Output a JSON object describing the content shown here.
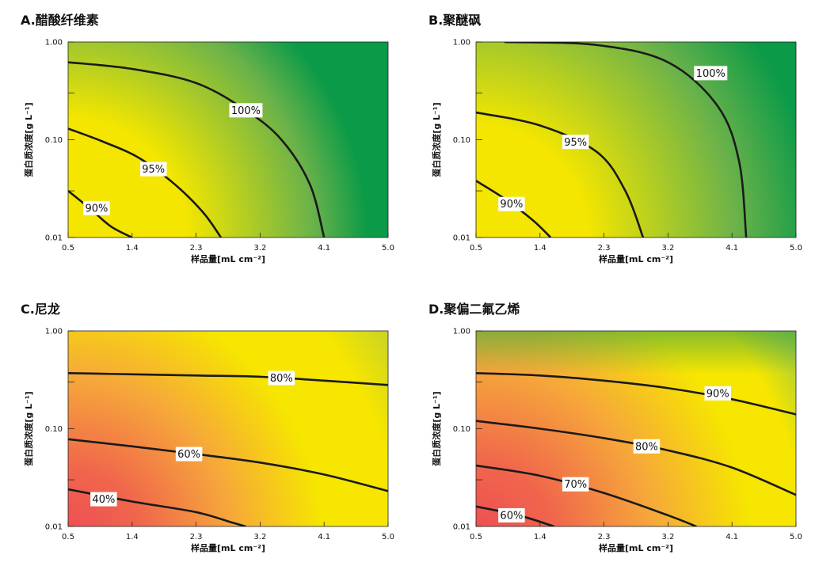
{
  "chart_data": [
    {
      "type": "contour",
      "title": "A.醋酸纤维素",
      "xlabel": "样品量[mL cm⁻²]",
      "ylabel": "蛋白质浓度[g L⁻¹]",
      "x_ticks": [
        "0.5",
        "1.4",
        "2.3",
        "3.2",
        "4.1",
        "5.0"
      ],
      "y_ticks": [
        "1.00",
        "0.10",
        "0.01"
      ],
      "xlim": [
        0.5,
        5.0
      ],
      "ylim": [
        0.01,
        1.0
      ],
      "y_scale": "log",
      "colors": {
        "low": "#f4e600",
        "high": "#0a9a48"
      },
      "contours": [
        {
          "label": "90%",
          "points": [
            [
              0.5,
              0.03
            ],
            [
              0.8,
              0.02
            ],
            [
              1.1,
              0.013
            ],
            [
              1.4,
              0.01
            ]
          ],
          "label_at": [
            0.9,
            0.02
          ]
        },
        {
          "label": "95%",
          "points": [
            [
              0.5,
              0.13
            ],
            [
              1.0,
              0.095
            ],
            [
              1.5,
              0.065
            ],
            [
              2.0,
              0.035
            ],
            [
              2.4,
              0.018
            ],
            [
              2.65,
              0.01
            ]
          ],
          "label_at": [
            1.7,
            0.05
          ]
        },
        {
          "label": "100%",
          "points": [
            [
              0.5,
              0.62
            ],
            [
              1.4,
              0.53
            ],
            [
              2.3,
              0.38
            ],
            [
              3.0,
              0.2
            ],
            [
              3.5,
              0.1
            ],
            [
              3.9,
              0.035
            ],
            [
              4.1,
              0.01
            ]
          ],
          "label_at": [
            3.0,
            0.2
          ]
        }
      ]
    },
    {
      "type": "contour",
      "title": "B.聚醚砜",
      "xlabel": "样品量[mL cm⁻²]",
      "ylabel": "蛋白质浓度[g L⁻¹]",
      "x_ticks": [
        "0.5",
        "1.4",
        "2.3",
        "3.2",
        "4.1",
        "5.0"
      ],
      "y_ticks": [
        "1.00",
        "0.10",
        "0.01"
      ],
      "xlim": [
        0.5,
        5.0
      ],
      "ylim": [
        0.01,
        1.0
      ],
      "y_scale": "log",
      "colors": {
        "low": "#f4e600",
        "high": "#0a9a48"
      },
      "contours": [
        {
          "label": "90%",
          "points": [
            [
              0.5,
              0.038
            ],
            [
              0.9,
              0.025
            ],
            [
              1.3,
              0.015
            ],
            [
              1.55,
              0.01
            ]
          ],
          "label_at": [
            1.0,
            0.022
          ]
        },
        {
          "label": "95%",
          "points": [
            [
              0.5,
              0.19
            ],
            [
              1.4,
              0.14
            ],
            [
              2.2,
              0.075
            ],
            [
              2.6,
              0.03
            ],
            [
              2.85,
              0.01
            ]
          ],
          "label_at": [
            1.9,
            0.095
          ]
        },
        {
          "label": "100%",
          "points": [
            [
              0.9,
              1.0
            ],
            [
              2.2,
              0.93
            ],
            [
              3.2,
              0.62
            ],
            [
              3.9,
              0.22
            ],
            [
              4.2,
              0.06
            ],
            [
              4.3,
              0.01
            ]
          ],
          "label_at": [
            3.8,
            0.48
          ]
        }
      ]
    },
    {
      "type": "contour",
      "title": "C.尼龙",
      "xlabel": "样品量[mL cm⁻²]",
      "ylabel": "蛋白质浓度[g L⁻¹]",
      "x_ticks": [
        "0.5",
        "1.4",
        "2.3",
        "3.2",
        "4.1",
        "5.0"
      ],
      "y_ticks": [
        "1.00",
        "0.10",
        "0.01"
      ],
      "xlim": [
        0.5,
        5.0
      ],
      "ylim": [
        0.01,
        1.0
      ],
      "y_scale": "log",
      "colors": {
        "low": "#ee4b55",
        "mid": "#f6e600",
        "high": "#2e9c4c"
      },
      "contours": [
        {
          "label": "40%",
          "points": [
            [
              0.5,
              0.024
            ],
            [
              1.4,
              0.018
            ],
            [
              2.3,
              0.014
            ],
            [
              2.8,
              0.011
            ],
            [
              3.0,
              0.01
            ]
          ],
          "label_at": [
            1.0,
            0.019
          ]
        },
        {
          "label": "60%",
          "points": [
            [
              0.5,
              0.078
            ],
            [
              1.4,
              0.066
            ],
            [
              2.3,
              0.055
            ],
            [
              3.2,
              0.045
            ],
            [
              4.1,
              0.034
            ],
            [
              5.0,
              0.023
            ]
          ],
          "label_at": [
            2.2,
            0.055
          ]
        },
        {
          "label": "80%",
          "points": [
            [
              0.5,
              0.37
            ],
            [
              1.4,
              0.36
            ],
            [
              2.3,
              0.35
            ],
            [
              3.2,
              0.34
            ],
            [
              4.1,
              0.31
            ],
            [
              5.0,
              0.28
            ]
          ],
          "label_at": [
            3.5,
            0.33
          ]
        }
      ]
    },
    {
      "type": "contour",
      "title": "D.聚偏二氟乙烯",
      "xlabel": "样品量[mL cm⁻²]",
      "ylabel": "蛋白质浓度[g L⁻¹]",
      "x_ticks": [
        "0.5",
        "1.4",
        "2.3",
        "3.2",
        "4.1",
        "5.0"
      ],
      "y_ticks": [
        "1.00",
        "0.10",
        "0.01"
      ],
      "xlim": [
        0.5,
        5.0
      ],
      "ylim": [
        0.01,
        1.0
      ],
      "y_scale": "log",
      "colors": {
        "low": "#ee4b55",
        "mid": "#f6e600",
        "high": "#2e9c4c"
      },
      "contours": [
        {
          "label": "60%",
          "points": [
            [
              0.5,
              0.016
            ],
            [
              1.1,
              0.013
            ],
            [
              1.6,
              0.01
            ]
          ],
          "label_at": [
            1.0,
            0.013
          ]
        },
        {
          "label": "70%",
          "points": [
            [
              0.5,
              0.042
            ],
            [
              1.4,
              0.033
            ],
            [
              2.3,
              0.022
            ],
            [
              3.2,
              0.013
            ],
            [
              3.6,
              0.01
            ]
          ],
          "label_at": [
            1.9,
            0.027
          ]
        },
        {
          "label": "80%",
          "points": [
            [
              0.5,
              0.12
            ],
            [
              1.4,
              0.1
            ],
            [
              2.3,
              0.08
            ],
            [
              3.2,
              0.06
            ],
            [
              4.1,
              0.04
            ],
            [
              5.0,
              0.021
            ]
          ],
          "label_at": [
            2.9,
            0.066
          ]
        },
        {
          "label": "90%",
          "points": [
            [
              0.5,
              0.37
            ],
            [
              1.4,
              0.35
            ],
            [
              2.3,
              0.31
            ],
            [
              3.2,
              0.26
            ],
            [
              4.1,
              0.2
            ],
            [
              5.0,
              0.14
            ]
          ],
          "label_at": [
            3.9,
            0.23
          ]
        }
      ]
    }
  ]
}
